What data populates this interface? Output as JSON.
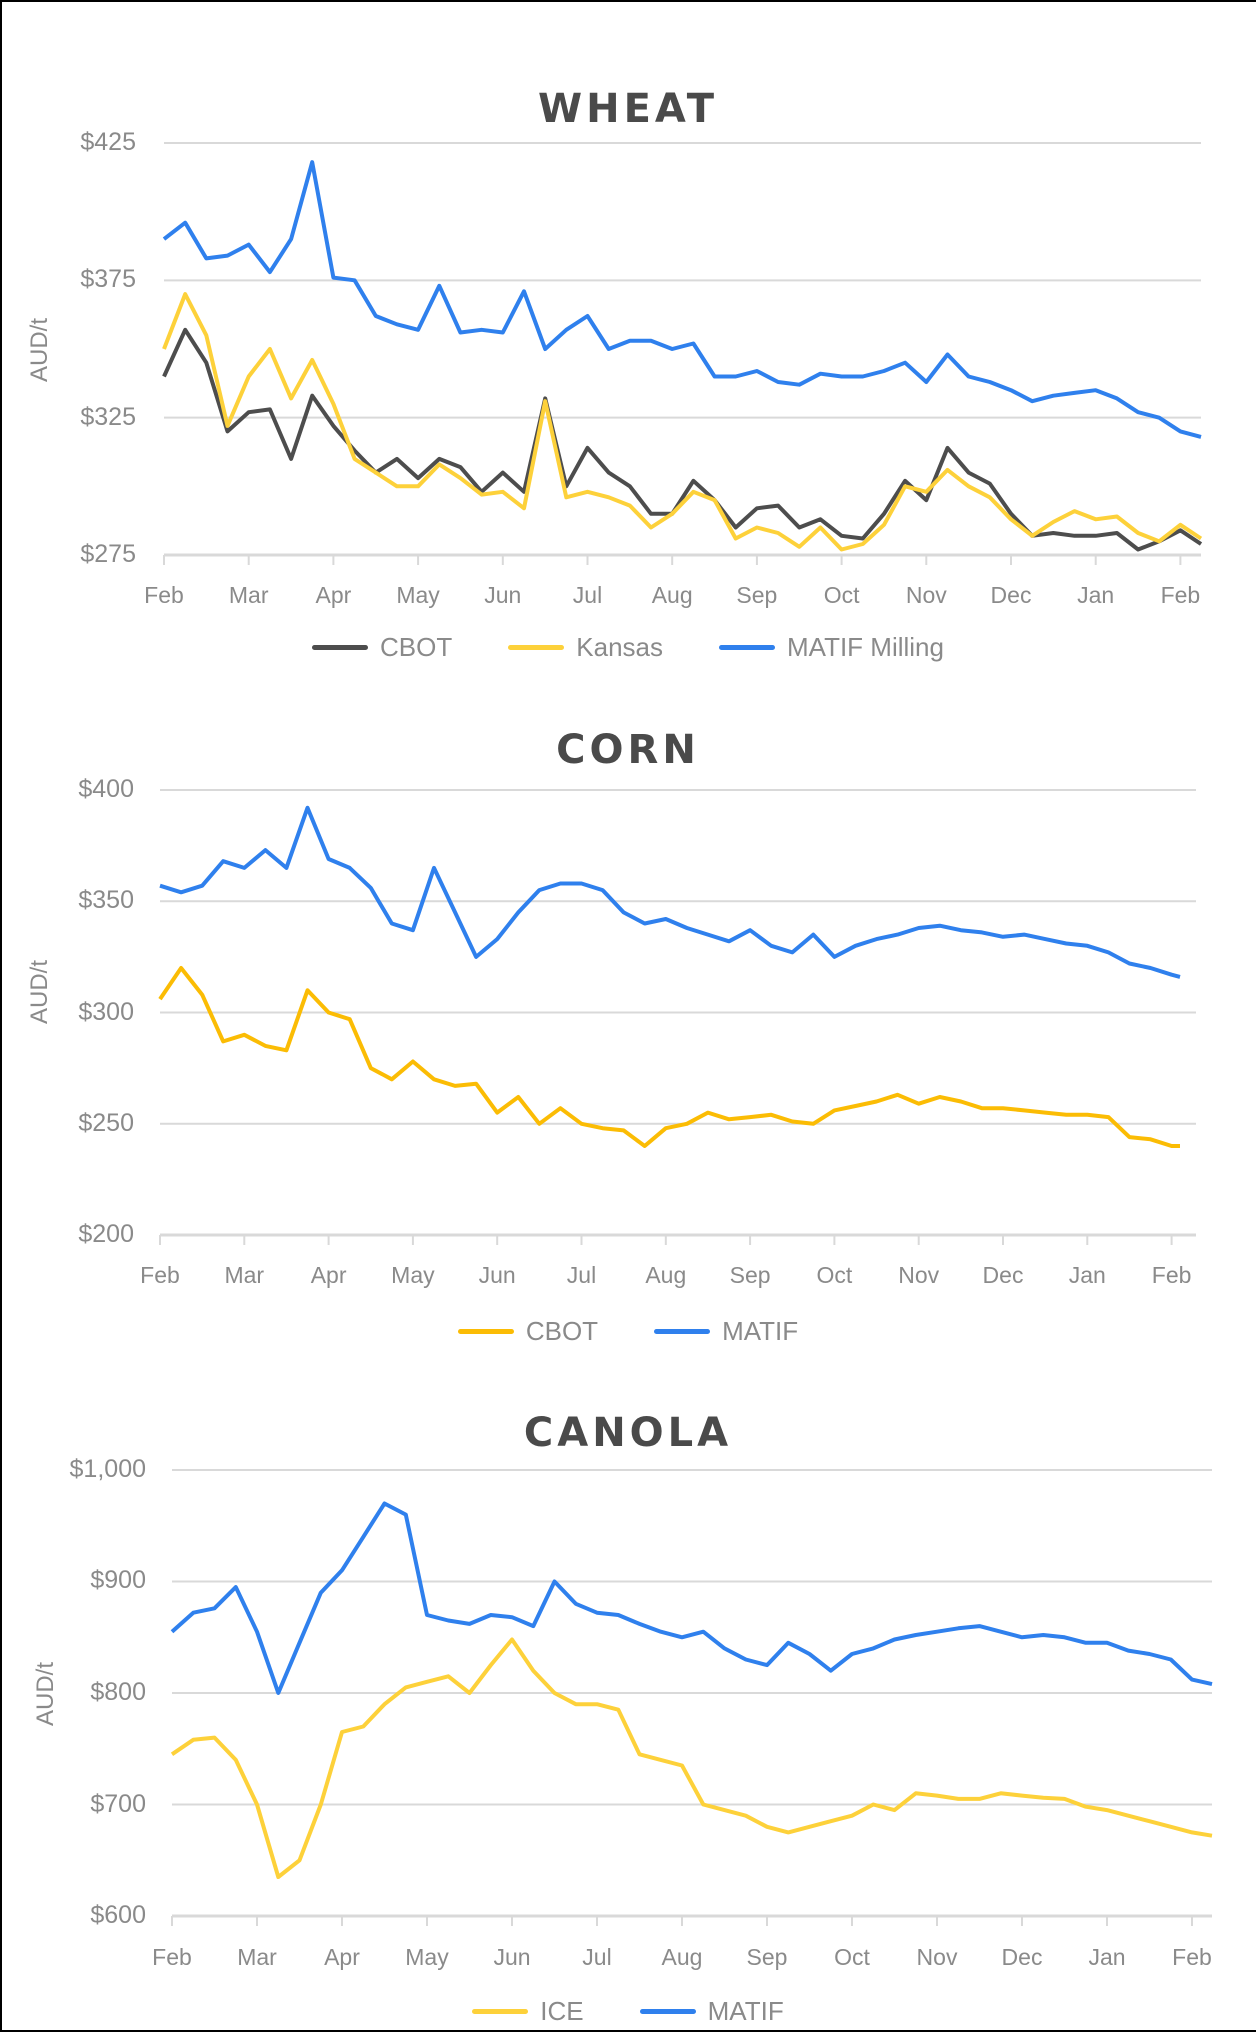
{
  "months": [
    "Feb",
    "Mar",
    "Apr",
    "May",
    "Jun",
    "Jul",
    "Aug",
    "Sep",
    "Oct",
    "Nov",
    "Dec",
    "Jan",
    "Feb"
  ],
  "colors": {
    "cbot_dark": "#4d4d4d",
    "yellow": "#fdd13a",
    "corn_yellow": "#fbbc04",
    "blue": "#2f80ed",
    "grid": "#d9d9d9",
    "text": "#8a8a8a",
    "title": "#4a4a4a"
  },
  "wheat": {
    "title": "WHEAT",
    "ylabel": "AUD/t",
    "yticks": [
      "$425",
      "$375",
      "$325",
      "$275"
    ],
    "legend": [
      {
        "label": "CBOT",
        "color": "#4d4d4d"
      },
      {
        "label": "Kansas",
        "color": "#fdd13a"
      },
      {
        "label": "MATIF Milling",
        "color": "#2f80ed"
      }
    ]
  },
  "corn": {
    "title": "CORN",
    "ylabel": "AUD/t",
    "yticks": [
      "$400",
      "$350",
      "$300",
      "$250",
      "$200"
    ],
    "legend": [
      {
        "label": "CBOT",
        "color": "#fbbc04"
      },
      {
        "label": "MATIF",
        "color": "#2f80ed"
      }
    ]
  },
  "canola": {
    "title": "CANOLA",
    "ylabel": "AUD/t",
    "yticks": [
      "$1,000",
      "$900",
      "$800",
      "$700",
      "$600"
    ],
    "legend": [
      {
        "label": "ICE",
        "color": "#fdd13a"
      },
      {
        "label": "MATIF",
        "color": "#2f80ed"
      }
    ]
  },
  "chart_data": [
    {
      "type": "line",
      "title": "WHEAT",
      "xlabel": "",
      "ylabel": "AUD/t",
      "ylim": [
        275,
        425
      ],
      "yticks": [
        275,
        325,
        375,
        425
      ],
      "categories": [
        "Feb",
        "Mar",
        "Apr",
        "May",
        "Jun",
        "Jul",
        "Aug",
        "Sep",
        "Oct",
        "Nov",
        "Dec",
        "Jan",
        "Feb"
      ],
      "x": [
        0,
        0.25,
        0.5,
        0.75,
        1,
        1.25,
        1.5,
        1.75,
        2,
        2.25,
        2.5,
        2.75,
        3,
        3.25,
        3.5,
        3.75,
        4,
        4.25,
        4.5,
        4.75,
        5,
        5.25,
        5.5,
        5.75,
        6,
        6.25,
        6.5,
        6.75,
        7,
        7.25,
        7.5,
        7.75,
        8,
        8.25,
        8.5,
        8.75,
        9,
        9.25,
        9.5,
        9.75,
        10,
        10.25,
        10.5,
        10.75,
        11,
        11.25,
        11.5,
        11.75,
        12,
        12.25
      ],
      "series": [
        {
          "name": "CBOT",
          "color": "#4d4d4d",
          "values": [
            340,
            357,
            345,
            320,
            327,
            328,
            310,
            333,
            322,
            313,
            305,
            310,
            303,
            310,
            307,
            298,
            305,
            298,
            332,
            300,
            314,
            305,
            300,
            290,
            290,
            302,
            295,
            285,
            292,
            293,
            285,
            288,
            282,
            281,
            290,
            302,
            295,
            314,
            305,
            301,
            290,
            282,
            283,
            282,
            282,
            283,
            277,
            280,
            284,
            279
          ]
        },
        {
          "name": "Kansas",
          "color": "#fdd13a",
          "values": [
            350,
            370,
            355,
            322,
            340,
            350,
            332,
            346,
            330,
            310,
            305,
            300,
            300,
            308,
            303,
            297,
            298,
            292,
            331,
            296,
            298,
            296,
            293,
            285,
            290,
            298,
            295,
            281,
            285,
            283,
            278,
            285,
            277,
            279,
            286,
            300,
            298,
            306,
            300,
            296,
            288,
            282,
            287,
            291,
            288,
            289,
            283,
            280,
            286,
            281
          ]
        },
        {
          "name": "MATIF Milling",
          "color": "#2f80ed",
          "values": [
            390,
            396,
            383,
            384,
            388,
            378,
            390,
            418,
            376,
            375,
            362,
            359,
            357,
            373,
            356,
            357,
            356,
            371,
            350,
            357,
            362,
            350,
            353,
            353,
            350,
            352,
            340,
            340,
            342,
            338,
            337,
            341,
            340,
            340,
            342,
            345,
            338,
            348,
            340,
            338,
            335,
            331,
            333,
            334,
            335,
            332,
            327,
            325,
            320,
            318
          ]
        }
      ],
      "grid": true,
      "legend_position": "bottom"
    },
    {
      "type": "line",
      "title": "CORN",
      "xlabel": "",
      "ylabel": "AUD/t",
      "ylim": [
        200,
        400
      ],
      "yticks": [
        200,
        250,
        300,
        350,
        400
      ],
      "categories": [
        "Feb",
        "Mar",
        "Apr",
        "May",
        "Jun",
        "Jul",
        "Aug",
        "Sep",
        "Oct",
        "Nov",
        "Dec",
        "Jan",
        "Feb"
      ],
      "x": [
        0,
        0.25,
        0.5,
        0.75,
        1,
        1.25,
        1.5,
        1.75,
        2,
        2.25,
        2.5,
        2.75,
        3,
        3.25,
        3.5,
        3.75,
        4,
        4.25,
        4.5,
        4.75,
        5,
        5.25,
        5.5,
        5.75,
        6,
        6.25,
        6.5,
        6.75,
        7,
        7.25,
        7.5,
        7.75,
        8,
        8.25,
        8.5,
        8.75,
        9,
        9.25,
        9.5,
        9.75,
        10,
        10.25,
        10.5,
        10.75,
        11,
        11.25,
        11.5,
        11.75,
        12,
        12.1
      ],
      "series": [
        {
          "name": "CBOT",
          "color": "#fbbc04",
          "values": [
            306,
            320,
            308,
            287,
            290,
            285,
            283,
            310,
            300,
            297,
            275,
            270,
            278,
            270,
            267,
            268,
            255,
            262,
            250,
            257,
            250,
            248,
            247,
            240,
            248,
            250,
            255,
            252,
            253,
            254,
            251,
            250,
            256,
            258,
            260,
            263,
            259,
            262,
            260,
            257,
            257,
            256,
            255,
            254,
            254,
            253,
            244,
            243,
            240,
            240
          ]
        },
        {
          "name": "MATIF",
          "color": "#2f80ed",
          "values": [
            357,
            354,
            357,
            368,
            365,
            373,
            365,
            392,
            369,
            365,
            356,
            340,
            337,
            365,
            345,
            325,
            333,
            345,
            355,
            358,
            358,
            355,
            345,
            340,
            342,
            338,
            335,
            332,
            337,
            330,
            327,
            335,
            325,
            330,
            333,
            335,
            338,
            339,
            337,
            336,
            334,
            335,
            333,
            331,
            330,
            327,
            322,
            320,
            317,
            316
          ]
        }
      ],
      "grid": true,
      "legend_position": "bottom"
    },
    {
      "type": "line",
      "title": "CANOLA",
      "xlabel": "",
      "ylabel": "AUD/t",
      "ylim": [
        600,
        1000
      ],
      "yticks": [
        600,
        700,
        800,
        900,
        1000
      ],
      "categories": [
        "Feb",
        "Mar",
        "Apr",
        "May",
        "Jun",
        "Jul",
        "Aug",
        "Sep",
        "Oct",
        "Nov",
        "Dec",
        "Jan",
        "Feb"
      ],
      "x": [
        0,
        0.25,
        0.5,
        0.75,
        1,
        1.25,
        1.5,
        1.75,
        2,
        2.25,
        2.5,
        2.75,
        3,
        3.25,
        3.5,
        3.75,
        4,
        4.25,
        4.5,
        4.75,
        5,
        5.25,
        5.5,
        5.75,
        6,
        6.25,
        6.5,
        6.75,
        7,
        7.25,
        7.5,
        7.75,
        8,
        8.25,
        8.5,
        8.75,
        9,
        9.25,
        9.5,
        9.75,
        10,
        10.25,
        10.5,
        10.75,
        11,
        11.25,
        11.5,
        11.75,
        12,
        12.25
      ],
      "series": [
        {
          "name": "ICE",
          "color": "#fdd13a",
          "values": [
            745,
            758,
            760,
            740,
            700,
            635,
            650,
            700,
            765,
            770,
            790,
            805,
            810,
            815,
            800,
            825,
            848,
            820,
            800,
            790,
            790,
            785,
            745,
            740,
            735,
            700,
            695,
            690,
            680,
            675,
            680,
            685,
            690,
            700,
            695,
            710,
            708,
            705,
            705,
            710,
            708,
            706,
            705,
            698,
            695,
            690,
            685,
            680,
            675,
            672
          ]
        },
        {
          "name": "MATIF",
          "color": "#2f80ed",
          "values": [
            855,
            872,
            876,
            895,
            855,
            800,
            845,
            890,
            910,
            940,
            970,
            960,
            870,
            865,
            862,
            870,
            868,
            860,
            900,
            880,
            872,
            870,
            862,
            855,
            850,
            855,
            840,
            830,
            825,
            845,
            835,
            820,
            835,
            840,
            848,
            852,
            855,
            858,
            860,
            855,
            850,
            852,
            850,
            845,
            845,
            838,
            835,
            830,
            812,
            808
          ]
        }
      ],
      "grid": true,
      "legend_position": "bottom"
    }
  ]
}
